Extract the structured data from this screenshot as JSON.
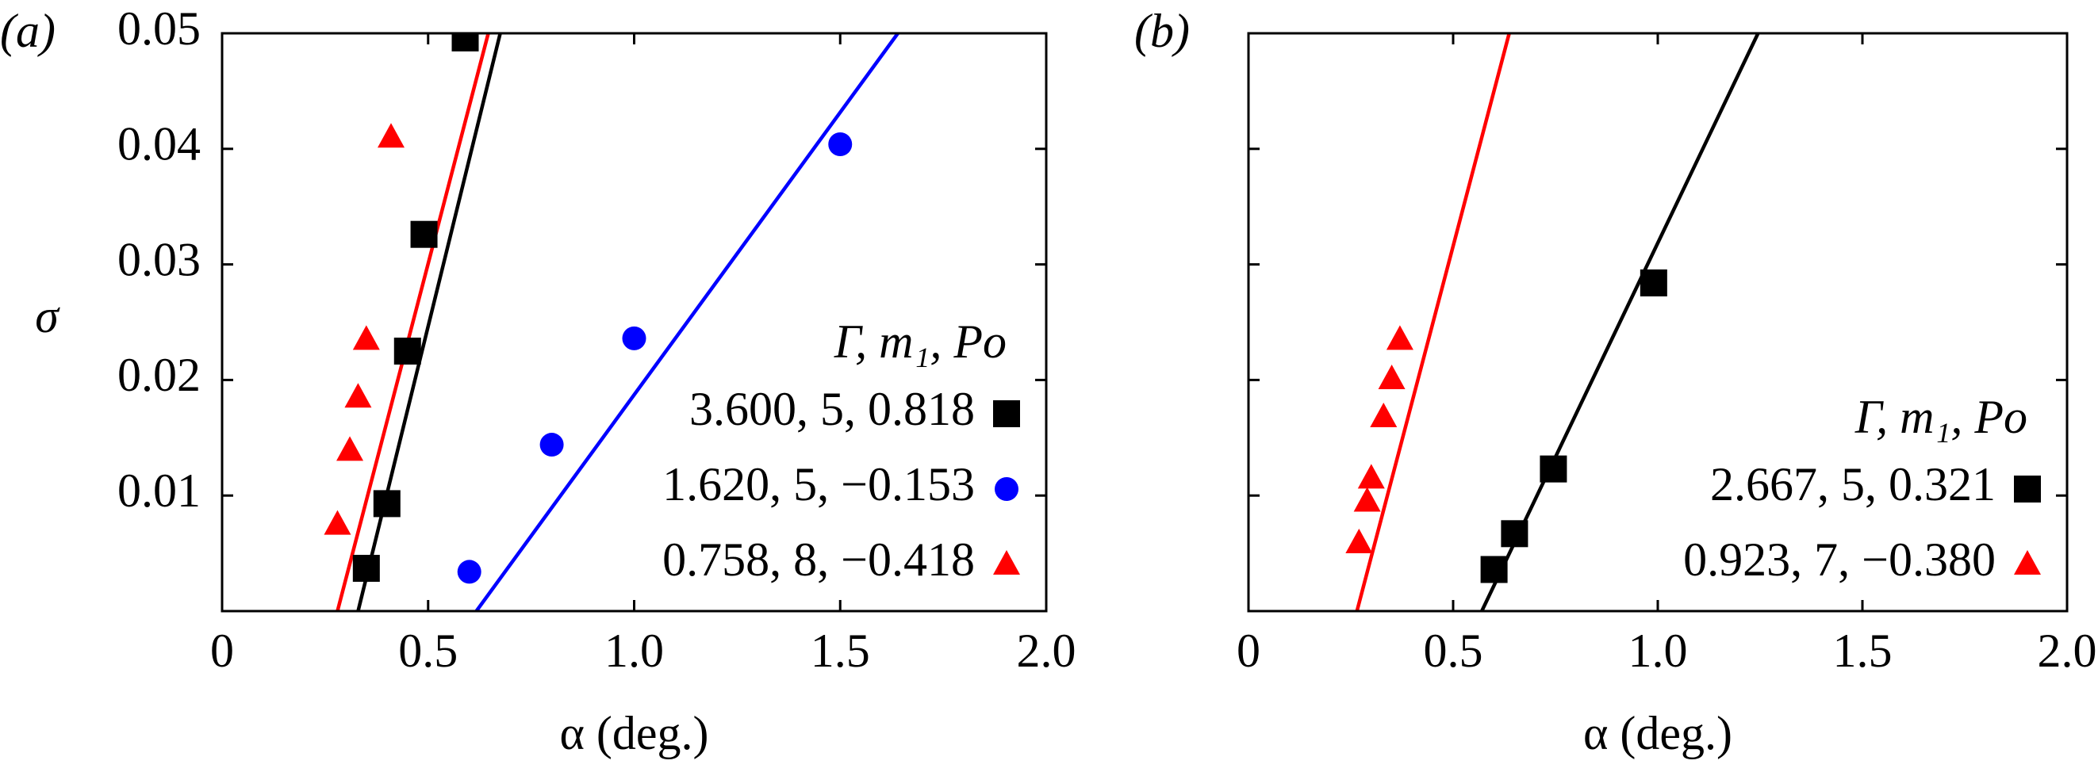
{
  "chart_data": [
    {
      "type": "scatter",
      "panel_label": "(a)",
      "ylabel": "σ",
      "xlabel": "α (deg.)",
      "xlim": [
        0,
        2
      ],
      "ylim": [
        0,
        0.05
      ],
      "xticks": [
        0,
        0.5,
        {
          "value": 1,
          "label": "1.0"
        },
        1.5,
        {
          "value": 2,
          "label": "2.0"
        }
      ],
      "yticks": [
        0.01,
        0.02,
        0.03,
        0.04,
        0.05
      ],
      "show_ytick_labels": true,
      "legend": "lower right",
      "legend_title": "Γ, m₁, Po",
      "series": [
        {
          "name": "3.600, 5, 0.818",
          "color": "#000000",
          "marker": "square",
          "x": [
            0.35,
            0.4,
            0.45,
            0.49,
            0.59
          ],
          "values": [
            0.0037,
            0.0093,
            0.0225,
            0.0326,
            0.0496
          ],
          "fit": {
            "x": [
              0.33,
              0.675
            ],
            "values": [
              0,
              0.05
            ]
          }
        },
        {
          "name": "1.620, 5, −0.153",
          "color": "#0000ff",
          "marker": "circle",
          "x": [
            0.6,
            0.8,
            1.0,
            1.5
          ],
          "values": [
            0.0034,
            0.0144,
            0.0236,
            0.0404
          ],
          "fit": {
            "x": [
              0.617,
              1.64
            ],
            "values": [
              0,
              0.05
            ]
          }
        },
        {
          "name": "0.758, 8, −0.418",
          "color": "#ff0000",
          "marker": "triangle",
          "x": [
            0.28,
            0.31,
            0.33,
            0.35,
            0.41
          ],
          "values": [
            0.0075,
            0.0139,
            0.0185,
            0.0235,
            0.041
          ],
          "fit": {
            "x": [
              0.28,
              0.646
            ],
            "values": [
              0,
              0.05
            ]
          }
        }
      ]
    },
    {
      "type": "scatter",
      "panel_label": "(b)",
      "xlabel": "α (deg.)",
      "xlim": [
        0,
        2
      ],
      "ylim": [
        0,
        0.05
      ],
      "xticks": [
        0,
        0.5,
        {
          "value": 1,
          "label": "1.0"
        },
        1.5,
        {
          "value": 2,
          "label": "2.0"
        }
      ],
      "yticks": [
        0.01,
        0.02,
        0.03,
        0.04,
        0.05
      ],
      "show_ytick_labels": false,
      "legend": "lower right",
      "legend_title": "Γ, m₁, Po",
      "series": [
        {
          "name": "2.667, 5, 0.321",
          "color": "#000000",
          "marker": "square",
          "x": [
            0.6,
            0.65,
            0.745,
            0.99
          ],
          "values": [
            0.0036,
            0.0067,
            0.0123,
            0.0284
          ],
          "fit": {
            "x": [
              0.57,
              1.245
            ],
            "values": [
              0,
              0.05
            ]
          }
        },
        {
          "name": "0.923, 7, −0.380",
          "color": "#ff0000",
          "marker": "triangle",
          "x": [
            0.27,
            0.29,
            0.3,
            0.33,
            0.35,
            0.37
          ],
          "values": [
            0.0059,
            0.0095,
            0.0115,
            0.0168,
            0.0201,
            0.0235
          ],
          "fit": {
            "x": [
              0.265,
              0.637
            ],
            "values": [
              0,
              0.05
            ]
          }
        }
      ]
    }
  ]
}
